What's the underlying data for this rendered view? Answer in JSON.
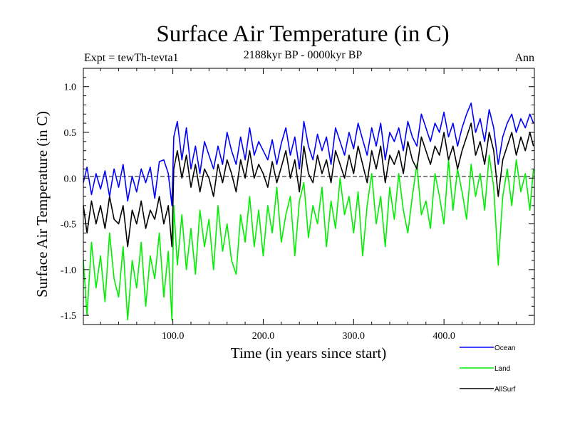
{
  "chart_data": {
    "type": "line",
    "title": "Surface Air Temperature (in C)",
    "subtitle": "2188kyr BP - 0000kyr BP",
    "left_label": "Expt = tewTh-tevta1",
    "right_label": "Ann",
    "xlabel": "Time (in years since start)",
    "ylabel": "Surface Air Temperature (in C)",
    "xlim": [
      1,
      500
    ],
    "ylim": [
      -1.6,
      1.2
    ],
    "x_ticks": [
      100,
      200,
      300,
      400
    ],
    "x_tick_labels": [
      "100.0",
      "200.0",
      "300.0",
      "400.0"
    ],
    "y_ticks": [
      -1.5,
      -1.0,
      -0.5,
      0.0,
      0.5,
      1.0
    ],
    "y_tick_labels": [
      "-1.5",
      "-1.0",
      "-0.5",
      "0.0",
      "0.5",
      "1.0"
    ],
    "zero_line": true,
    "legend_position": "bottom-right",
    "series": [
      {
        "name": "Ocean",
        "color": "#0000ff",
        "x": [
          1,
          5,
          10,
          15,
          20,
          25,
          30,
          35,
          40,
          45,
          50,
          55,
          60,
          65,
          70,
          75,
          80,
          85,
          90,
          95,
          99,
          101,
          105,
          110,
          115,
          120,
          125,
          130,
          135,
          140,
          145,
          150,
          155,
          160,
          165,
          170,
          175,
          180,
          185,
          190,
          195,
          200,
          205,
          210,
          215,
          220,
          225,
          230,
          235,
          240,
          245,
          250,
          255,
          260,
          265,
          270,
          275,
          280,
          285,
          290,
          295,
          300,
          305,
          310,
          315,
          320,
          325,
          330,
          335,
          340,
          345,
          350,
          355,
          360,
          365,
          370,
          375,
          380,
          385,
          390,
          395,
          400,
          405,
          410,
          415,
          420,
          425,
          430,
          435,
          440,
          445,
          450,
          455,
          460,
          465,
          470,
          475,
          480,
          485,
          490,
          495,
          499
        ],
        "values": [
          -0.05,
          0.12,
          -0.18,
          0.05,
          -0.12,
          0.08,
          -0.2,
          0.1,
          -0.1,
          0.15,
          -0.25,
          0.02,
          -0.15,
          0.1,
          -0.05,
          0.12,
          -0.22,
          0.18,
          0.2,
          0.05,
          -0.3,
          0.45,
          0.62,
          0.2,
          0.55,
          0.1,
          0.35,
          0.05,
          0.4,
          0.25,
          0.1,
          0.35,
          0.15,
          0.5,
          0.3,
          0.15,
          0.45,
          0.2,
          0.55,
          0.25,
          0.4,
          0.3,
          0.2,
          0.42,
          0.15,
          0.38,
          0.55,
          0.25,
          0.45,
          0.1,
          0.62,
          0.35,
          0.2,
          0.48,
          0.3,
          0.45,
          0.15,
          0.55,
          0.4,
          0.25,
          0.5,
          0.32,
          0.6,
          0.42,
          0.25,
          0.55,
          0.35,
          0.6,
          0.2,
          0.5,
          0.4,
          0.55,
          0.3,
          0.62,
          0.45,
          0.35,
          0.7,
          0.55,
          0.4,
          0.6,
          0.5,
          0.72,
          0.45,
          0.6,
          0.35,
          0.55,
          0.7,
          0.82,
          0.5,
          0.65,
          0.4,
          0.75,
          0.55,
          0.15,
          0.45,
          0.6,
          0.7,
          0.5,
          0.65,
          0.55,
          0.7,
          0.6
        ]
      },
      {
        "name": "Land",
        "color": "#00ee00",
        "x": [
          1,
          5,
          10,
          15,
          20,
          25,
          30,
          35,
          40,
          45,
          50,
          55,
          60,
          65,
          70,
          75,
          80,
          85,
          90,
          95,
          99,
          101,
          105,
          110,
          115,
          120,
          125,
          130,
          135,
          140,
          145,
          150,
          155,
          160,
          165,
          170,
          175,
          180,
          185,
          190,
          195,
          200,
          205,
          210,
          215,
          220,
          225,
          230,
          235,
          240,
          245,
          250,
          255,
          260,
          265,
          270,
          275,
          280,
          285,
          290,
          295,
          300,
          305,
          310,
          315,
          320,
          325,
          330,
          335,
          340,
          345,
          350,
          355,
          360,
          365,
          370,
          375,
          380,
          385,
          390,
          395,
          400,
          405,
          410,
          415,
          420,
          425,
          430,
          435,
          440,
          445,
          450,
          455,
          460,
          465,
          470,
          475,
          480,
          485,
          490,
          495,
          499
        ],
        "values": [
          -0.9,
          -1.5,
          -0.7,
          -1.2,
          -0.85,
          -1.35,
          -0.6,
          -1.1,
          -1.3,
          -0.75,
          -1.55,
          -0.9,
          -1.2,
          -0.7,
          -1.4,
          -0.85,
          -1.1,
          -0.6,
          -1.3,
          -0.8,
          -1.55,
          -0.3,
          -0.95,
          -0.4,
          -1.0,
          -0.55,
          -1.05,
          -0.35,
          -0.75,
          -0.45,
          -1.0,
          -0.3,
          -0.8,
          -0.5,
          -0.9,
          -1.05,
          -0.4,
          -0.7,
          -0.2,
          -0.75,
          -0.35,
          -0.85,
          -0.3,
          -0.6,
          -0.1,
          -0.7,
          -0.4,
          -0.2,
          -0.85,
          -0.25,
          -0.05,
          -0.65,
          -0.3,
          -0.5,
          -0.1,
          -0.75,
          -0.25,
          -0.55,
          0.0,
          -0.4,
          -0.2,
          -0.6,
          -0.15,
          -0.85,
          -0.3,
          0.05,
          -0.5,
          -0.2,
          -0.75,
          -0.1,
          -0.45,
          0.05,
          -0.35,
          -0.6,
          -0.2,
          0.15,
          -0.4,
          -0.25,
          -0.55,
          0.05,
          -0.2,
          -0.5,
          0.2,
          -0.35,
          0.1,
          -0.15,
          -0.45,
          0.15,
          -0.2,
          0.05,
          -0.35,
          0.25,
          -0.1,
          -0.95,
          -0.2,
          0.1,
          -0.3,
          0.2,
          -0.15,
          0.05,
          -0.35,
          0.1
        ]
      },
      {
        "name": "AllSurf",
        "color": "#000000",
        "x": [
          1,
          5,
          10,
          15,
          20,
          25,
          30,
          35,
          40,
          45,
          50,
          55,
          60,
          65,
          70,
          75,
          80,
          85,
          90,
          95,
          99,
          101,
          105,
          110,
          115,
          120,
          125,
          130,
          135,
          140,
          145,
          150,
          155,
          160,
          165,
          170,
          175,
          180,
          185,
          190,
          195,
          200,
          205,
          210,
          215,
          220,
          225,
          230,
          235,
          240,
          245,
          250,
          255,
          260,
          265,
          270,
          275,
          280,
          285,
          290,
          295,
          300,
          305,
          310,
          315,
          320,
          325,
          330,
          335,
          340,
          345,
          350,
          355,
          360,
          365,
          370,
          375,
          380,
          385,
          390,
          395,
          400,
          405,
          410,
          415,
          420,
          425,
          430,
          435,
          440,
          445,
          450,
          455,
          460,
          465,
          470,
          475,
          480,
          485,
          490,
          495,
          499
        ],
        "values": [
          -0.3,
          -0.6,
          -0.25,
          -0.5,
          -0.3,
          -0.55,
          -0.2,
          -0.45,
          -0.5,
          -0.3,
          -0.75,
          -0.35,
          -0.5,
          -0.25,
          -0.55,
          -0.35,
          -0.45,
          -0.2,
          -0.5,
          -0.3,
          -0.75,
          0.1,
          0.3,
          0.0,
          0.25,
          -0.1,
          0.15,
          -0.15,
          0.1,
          0.0,
          -0.2,
          0.15,
          -0.05,
          0.2,
          0.05,
          -0.15,
          0.2,
          0.0,
          0.3,
          0.0,
          0.15,
          0.05,
          -0.1,
          0.18,
          -0.05,
          0.12,
          0.3,
          0.0,
          0.2,
          -0.15,
          0.35,
          0.05,
          -0.05,
          0.25,
          0.05,
          0.2,
          -0.05,
          0.3,
          0.15,
          0.0,
          0.25,
          0.05,
          0.35,
          0.15,
          -0.05,
          0.3,
          0.1,
          0.35,
          -0.05,
          0.25,
          0.15,
          0.3,
          0.05,
          0.4,
          0.2,
          0.1,
          0.45,
          0.3,
          0.15,
          0.35,
          0.25,
          0.5,
          0.2,
          0.35,
          0.1,
          0.3,
          0.45,
          0.6,
          0.25,
          0.4,
          0.15,
          0.5,
          0.3,
          -0.2,
          0.2,
          0.35,
          0.5,
          0.25,
          0.45,
          0.3,
          0.5,
          0.35
        ]
      }
    ]
  }
}
